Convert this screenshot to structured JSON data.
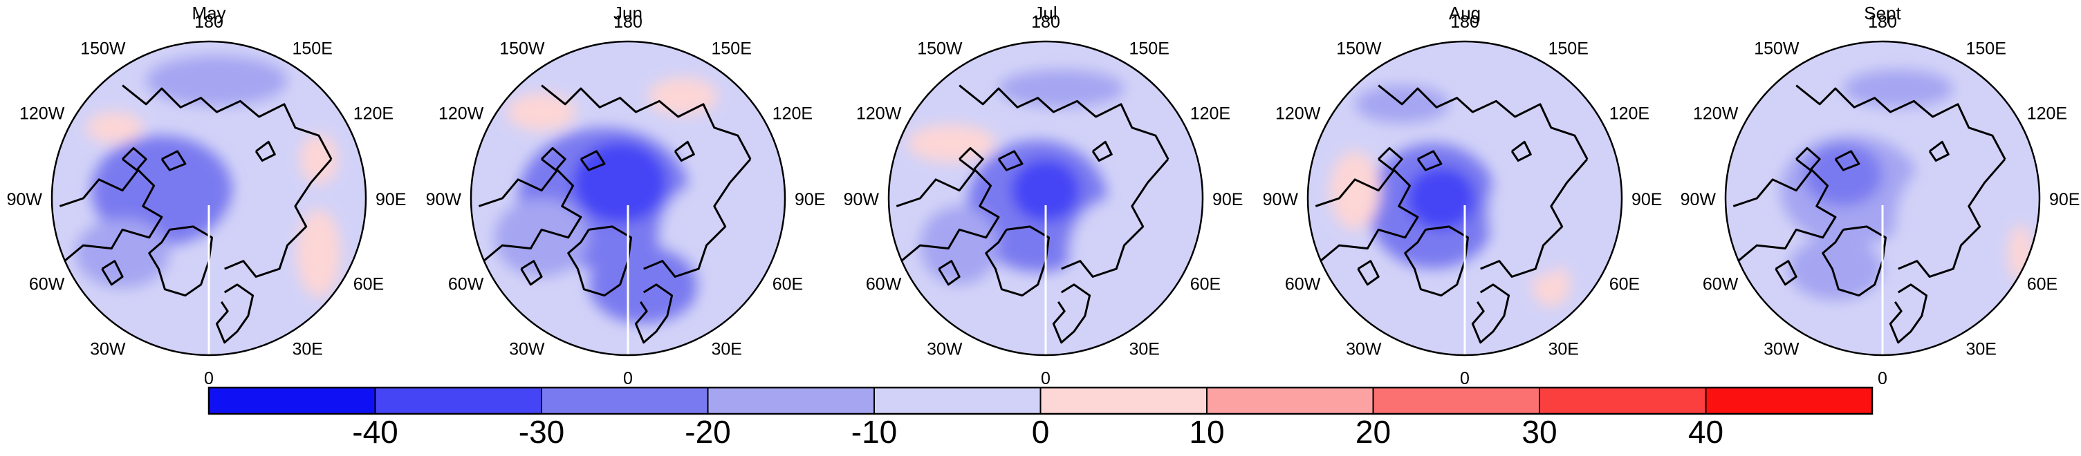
{
  "panels": [
    {
      "id": "may",
      "title": "May"
    },
    {
      "id": "jun",
      "title": "Jun"
    },
    {
      "id": "jul",
      "title": "Jul"
    },
    {
      "id": "aug",
      "title": "Aug"
    },
    {
      "id": "sep",
      "title": "Sept"
    }
  ],
  "longitude_labels": {
    "top": "180",
    "upper_left": "150W",
    "upper_right": "150E",
    "mid_upper_left": "120W",
    "mid_upper_right": "120E",
    "left": "90W",
    "right": "90E",
    "mid_lower_left": "60W",
    "mid_lower_right": "60E",
    "lower_left": "30W",
    "lower_right": "30E",
    "bottom": "0"
  },
  "colorbar": {
    "tick_labels": [
      "-40",
      "-30",
      "-20",
      "-10",
      "0",
      "10",
      "20",
      "30",
      "40"
    ],
    "colors": [
      "#1010f5",
      "#4545f5",
      "#7a7af0",
      "#a5a5f2",
      "#d2d2f8",
      "#fdd6d6",
      "#fca2a2",
      "#fb7070",
      "#fb3e3e",
      "#fc1010"
    ]
  },
  "chart_data": {
    "type": "heatmap",
    "projection": "north-polar-stereographic",
    "panels": [
      "May",
      "Jun",
      "Jul",
      "Aug",
      "Sept"
    ],
    "legend_position": "bottom",
    "color_levels": [
      -40,
      -30,
      -20,
      -10,
      0,
      10,
      20,
      30,
      40
    ]
  }
}
